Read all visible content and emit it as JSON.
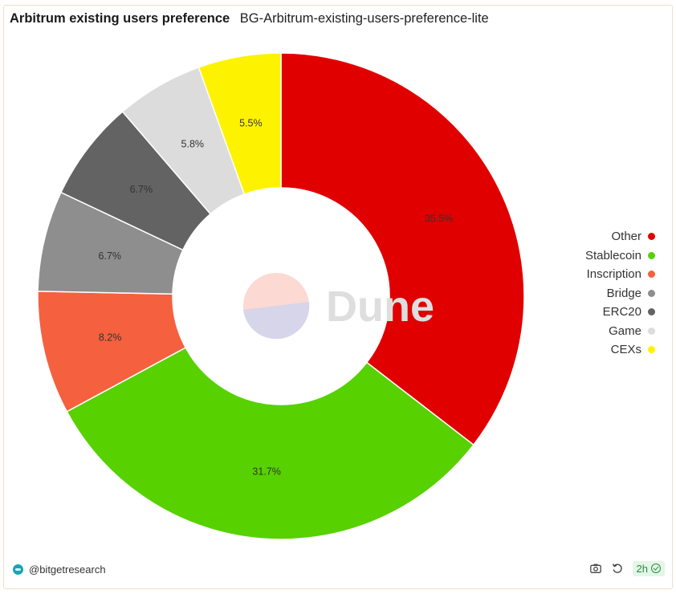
{
  "header": {
    "title": "Arbitrum existing users preference",
    "subtitle": "BG-Arbitrum-existing-users-preference-lite"
  },
  "watermark": {
    "text": "Dune"
  },
  "footer": {
    "author": "@bitgetresearch",
    "refresh_badge": "2h",
    "icons": [
      "camera-icon",
      "refresh-icon",
      "check-circle-icon"
    ]
  },
  "chart_data": {
    "type": "pie",
    "donut": true,
    "legend_position": "right",
    "slices": [
      {
        "label": "Other",
        "value": 35.5,
        "display": "35.5%",
        "color": "#e00000"
      },
      {
        "label": "Stablecoin",
        "value": 31.7,
        "display": "31.7%",
        "color": "#57d100"
      },
      {
        "label": "Inscription",
        "value": 8.2,
        "display": "8.2%",
        "color": "#f5603e"
      },
      {
        "label": "Bridge",
        "value": 6.7,
        "display": "6.7%",
        "color": "#8e8e8e"
      },
      {
        "label": "ERC20",
        "value": 6.7,
        "display": "6.7%",
        "color": "#636363"
      },
      {
        "label": "Game",
        "value": 5.8,
        "display": "5.8%",
        "color": "#dcdcdc"
      },
      {
        "label": "CEXs",
        "value": 5.5,
        "display": "5.5%",
        "color": "#fdf300"
      }
    ]
  }
}
